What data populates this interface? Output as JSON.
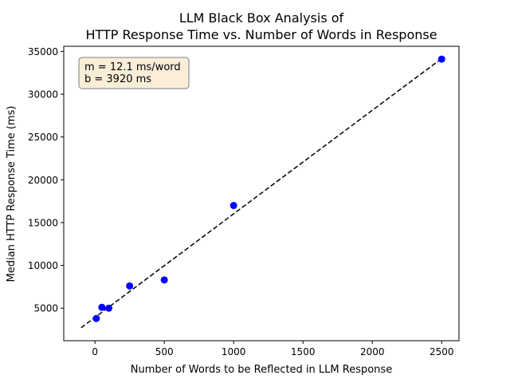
{
  "chart_data": {
    "type": "scatter",
    "title_lines": [
      "LLM Black Box Analysis of",
      "HTTP Response Time vs. Number of Words in Response"
    ],
    "xlabel": "Number of Words to be Reflected in LLM Response",
    "ylabel": "Median HTTP Response Time (ms)",
    "xlim": [
      -225,
      2625
    ],
    "ylim": [
      1200,
      35600
    ],
    "xticks": [
      0,
      500,
      1000,
      1500,
      2000,
      2500
    ],
    "yticks": [
      5000,
      10000,
      15000,
      20000,
      25000,
      30000,
      35000
    ],
    "grid": false,
    "series": [
      {
        "points": [
          {
            "x": 10,
            "y": 3800
          },
          {
            "x": 50,
            "y": 5100
          },
          {
            "x": 100,
            "y": 5000
          },
          {
            "x": 250,
            "y": 7600
          },
          {
            "x": 500,
            "y": 8300
          },
          {
            "x": 1000,
            "y": 17000
          },
          {
            "x": 2500,
            "y": 34100
          }
        ],
        "color": "#0000ff"
      }
    ],
    "fit_line": {
      "slope": 12.1,
      "intercept": 3920,
      "x_range": [
        -100,
        2500
      ],
      "color": "#000000",
      "style": "dashed"
    },
    "annotation": {
      "lines": [
        "m = 12.1 ms/word",
        "b = 3920 ms"
      ],
      "placement": "top-left",
      "box_color": "#f5deb3"
    }
  }
}
